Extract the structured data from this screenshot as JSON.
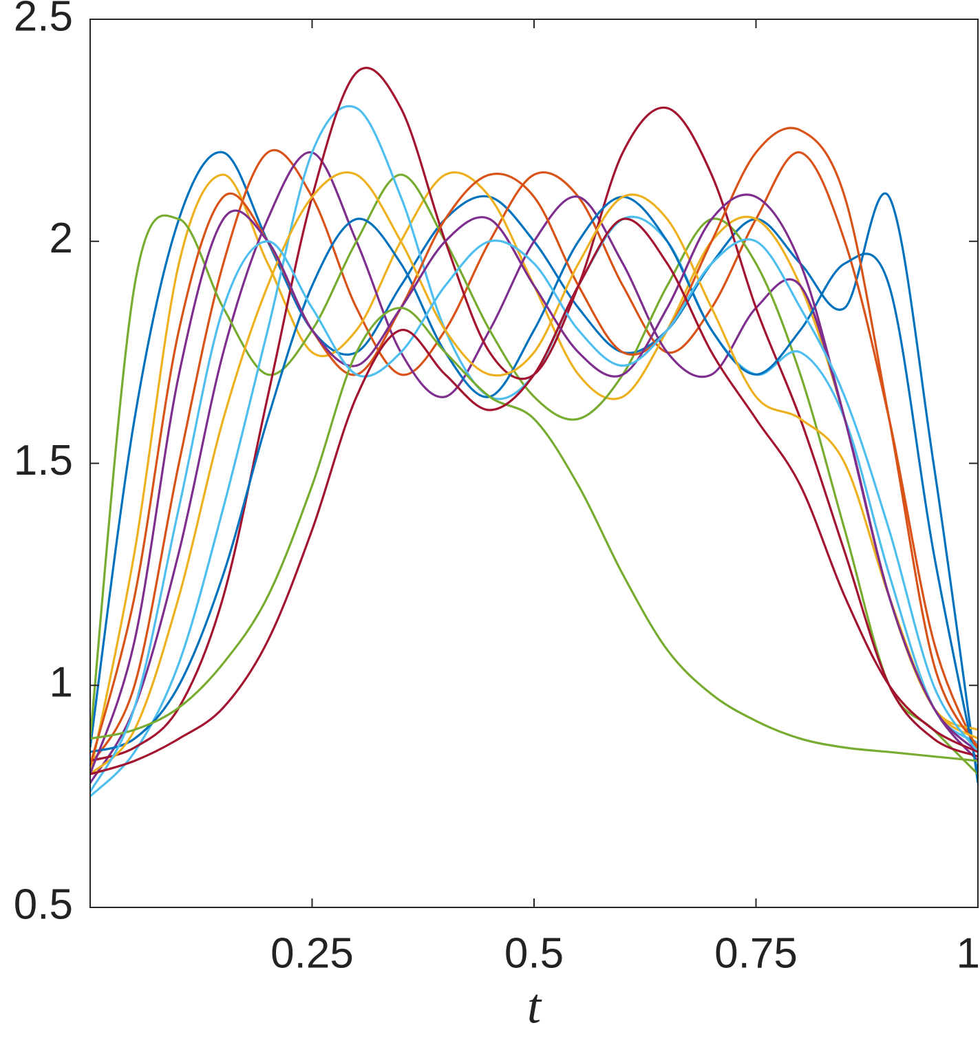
{
  "chart_data": {
    "type": "line",
    "xlabel": "t",
    "x": [
      0,
      0.05,
      0.1,
      0.15,
      0.2,
      0.25,
      0.3,
      0.35,
      0.4,
      0.45,
      0.5,
      0.55,
      0.6,
      0.65,
      0.7,
      0.75,
      0.8,
      0.85,
      0.9,
      0.95,
      1
    ],
    "xlim": [
      0,
      1
    ],
    "xticks": [
      0.25,
      0.5,
      0.75,
      1
    ],
    "ylim": [
      0.5,
      2.5
    ],
    "yticks": [
      0.5,
      1,
      1.5,
      2,
      2.5
    ],
    "grid": false,
    "series": [
      {
        "color": "#0072bd",
        "values": [
          0.86,
          1.6,
          2.05,
          2.2,
          2.0,
          1.8,
          1.75,
          1.9,
          2.05,
          2.1,
          2.0,
          1.85,
          1.75,
          1.8,
          1.95,
          2.05,
          1.95,
          1.85,
          2.1,
          1.5,
          0.78
        ]
      },
      {
        "color": "#d95319",
        "values": [
          0.82,
          1.0,
          1.5,
          1.95,
          2.2,
          2.1,
          1.85,
          1.7,
          1.8,
          2.0,
          2.15,
          2.1,
          1.9,
          1.75,
          1.85,
          2.05,
          2.2,
          2.0,
          1.6,
          1.1,
          0.85
        ]
      },
      {
        "color": "#edb120",
        "values": [
          0.8,
          1.3,
          1.95,
          2.15,
          1.95,
          1.75,
          1.8,
          2.0,
          2.15,
          2.1,
          1.9,
          1.7,
          1.65,
          1.8,
          2.0,
          2.05,
          1.9,
          1.6,
          1.2,
          0.95,
          0.9
        ]
      },
      {
        "color": "#7e2f8e",
        "values": [
          0.78,
          0.95,
          1.3,
          1.75,
          2.05,
          2.2,
          2.0,
          1.75,
          1.65,
          1.8,
          2.0,
          2.1,
          1.95,
          1.75,
          1.7,
          1.85,
          1.9,
          1.6,
          1.2,
          0.95,
          0.83
        ]
      },
      {
        "color": "#77ac30",
        "values": [
          0.88,
          1.9,
          2.05,
          1.85,
          1.7,
          1.8,
          2.0,
          2.15,
          2.0,
          1.8,
          1.65,
          1.6,
          1.7,
          1.9,
          2.05,
          1.95,
          1.7,
          1.35,
          1.0,
          0.9,
          0.8
        ]
      },
      {
        "color": "#4dbeee",
        "values": [
          0.75,
          0.85,
          1.05,
          1.4,
          1.8,
          2.2,
          2.3,
          2.1,
          1.8,
          1.65,
          1.7,
          1.9,
          2.05,
          2.0,
          1.8,
          1.7,
          1.75,
          1.6,
          1.25,
          0.95,
          0.87
        ]
      },
      {
        "color": "#a2142f",
        "values": [
          0.83,
          0.86,
          0.95,
          1.2,
          1.65,
          2.1,
          2.38,
          2.3,
          2.0,
          1.75,
          1.7,
          1.9,
          2.2,
          2.3,
          2.15,
          1.85,
          1.6,
          1.3,
          1.0,
          0.88,
          0.84
        ]
      },
      {
        "color": "#0072bd",
        "values": [
          0.85,
          0.88,
          1.0,
          1.25,
          1.6,
          1.9,
          2.05,
          1.95,
          1.75,
          1.65,
          1.8,
          2.0,
          2.1,
          2.0,
          1.8,
          1.7,
          1.8,
          1.95,
          1.9,
          1.3,
          0.8
        ]
      },
      {
        "color": "#d95319",
        "values": [
          0.82,
          1.2,
          1.8,
          2.1,
          2.0,
          1.8,
          1.7,
          1.85,
          2.05,
          2.15,
          2.1,
          1.9,
          1.75,
          1.8,
          2.0,
          2.2,
          2.25,
          2.1,
          1.6,
          1.05,
          0.86
        ]
      },
      {
        "color": "#edb120",
        "values": [
          0.8,
          0.9,
          1.2,
          1.6,
          1.9,
          2.1,
          2.15,
          2.0,
          1.8,
          1.7,
          1.75,
          1.95,
          2.1,
          2.05,
          1.85,
          1.65,
          1.6,
          1.5,
          1.2,
          0.95,
          0.88
        ]
      },
      {
        "color": "#7e2f8e",
        "values": [
          0.8,
          1.1,
          1.7,
          2.05,
          2.0,
          1.8,
          1.72,
          1.85,
          2.0,
          2.05,
          1.9,
          1.75,
          1.7,
          1.85,
          2.05,
          2.1,
          1.95,
          1.6,
          1.2,
          0.95,
          0.85
        ]
      },
      {
        "color": "#77ac30",
        "values": [
          0.88,
          0.9,
          0.95,
          1.05,
          1.2,
          1.45,
          1.75,
          1.85,
          1.75,
          1.65,
          1.6,
          1.45,
          1.25,
          1.08,
          0.98,
          0.92,
          0.88,
          0.86,
          0.85,
          0.84,
          0.83
        ]
      },
      {
        "color": "#4dbeee",
        "values": [
          0.76,
          0.95,
          1.4,
          1.85,
          2.0,
          1.85,
          1.7,
          1.75,
          1.9,
          2.0,
          1.95,
          1.8,
          1.72,
          1.8,
          1.95,
          2.0,
          1.85,
          1.65,
          1.35,
          1.0,
          0.85
        ]
      },
      {
        "color": "#a2142f",
        "values": [
          0.8,
          0.83,
          0.88,
          0.95,
          1.1,
          1.35,
          1.65,
          1.8,
          1.7,
          1.62,
          1.7,
          1.9,
          2.05,
          1.95,
          1.75,
          1.6,
          1.45,
          1.2,
          1.0,
          0.9,
          0.85
        ]
      }
    ]
  }
}
